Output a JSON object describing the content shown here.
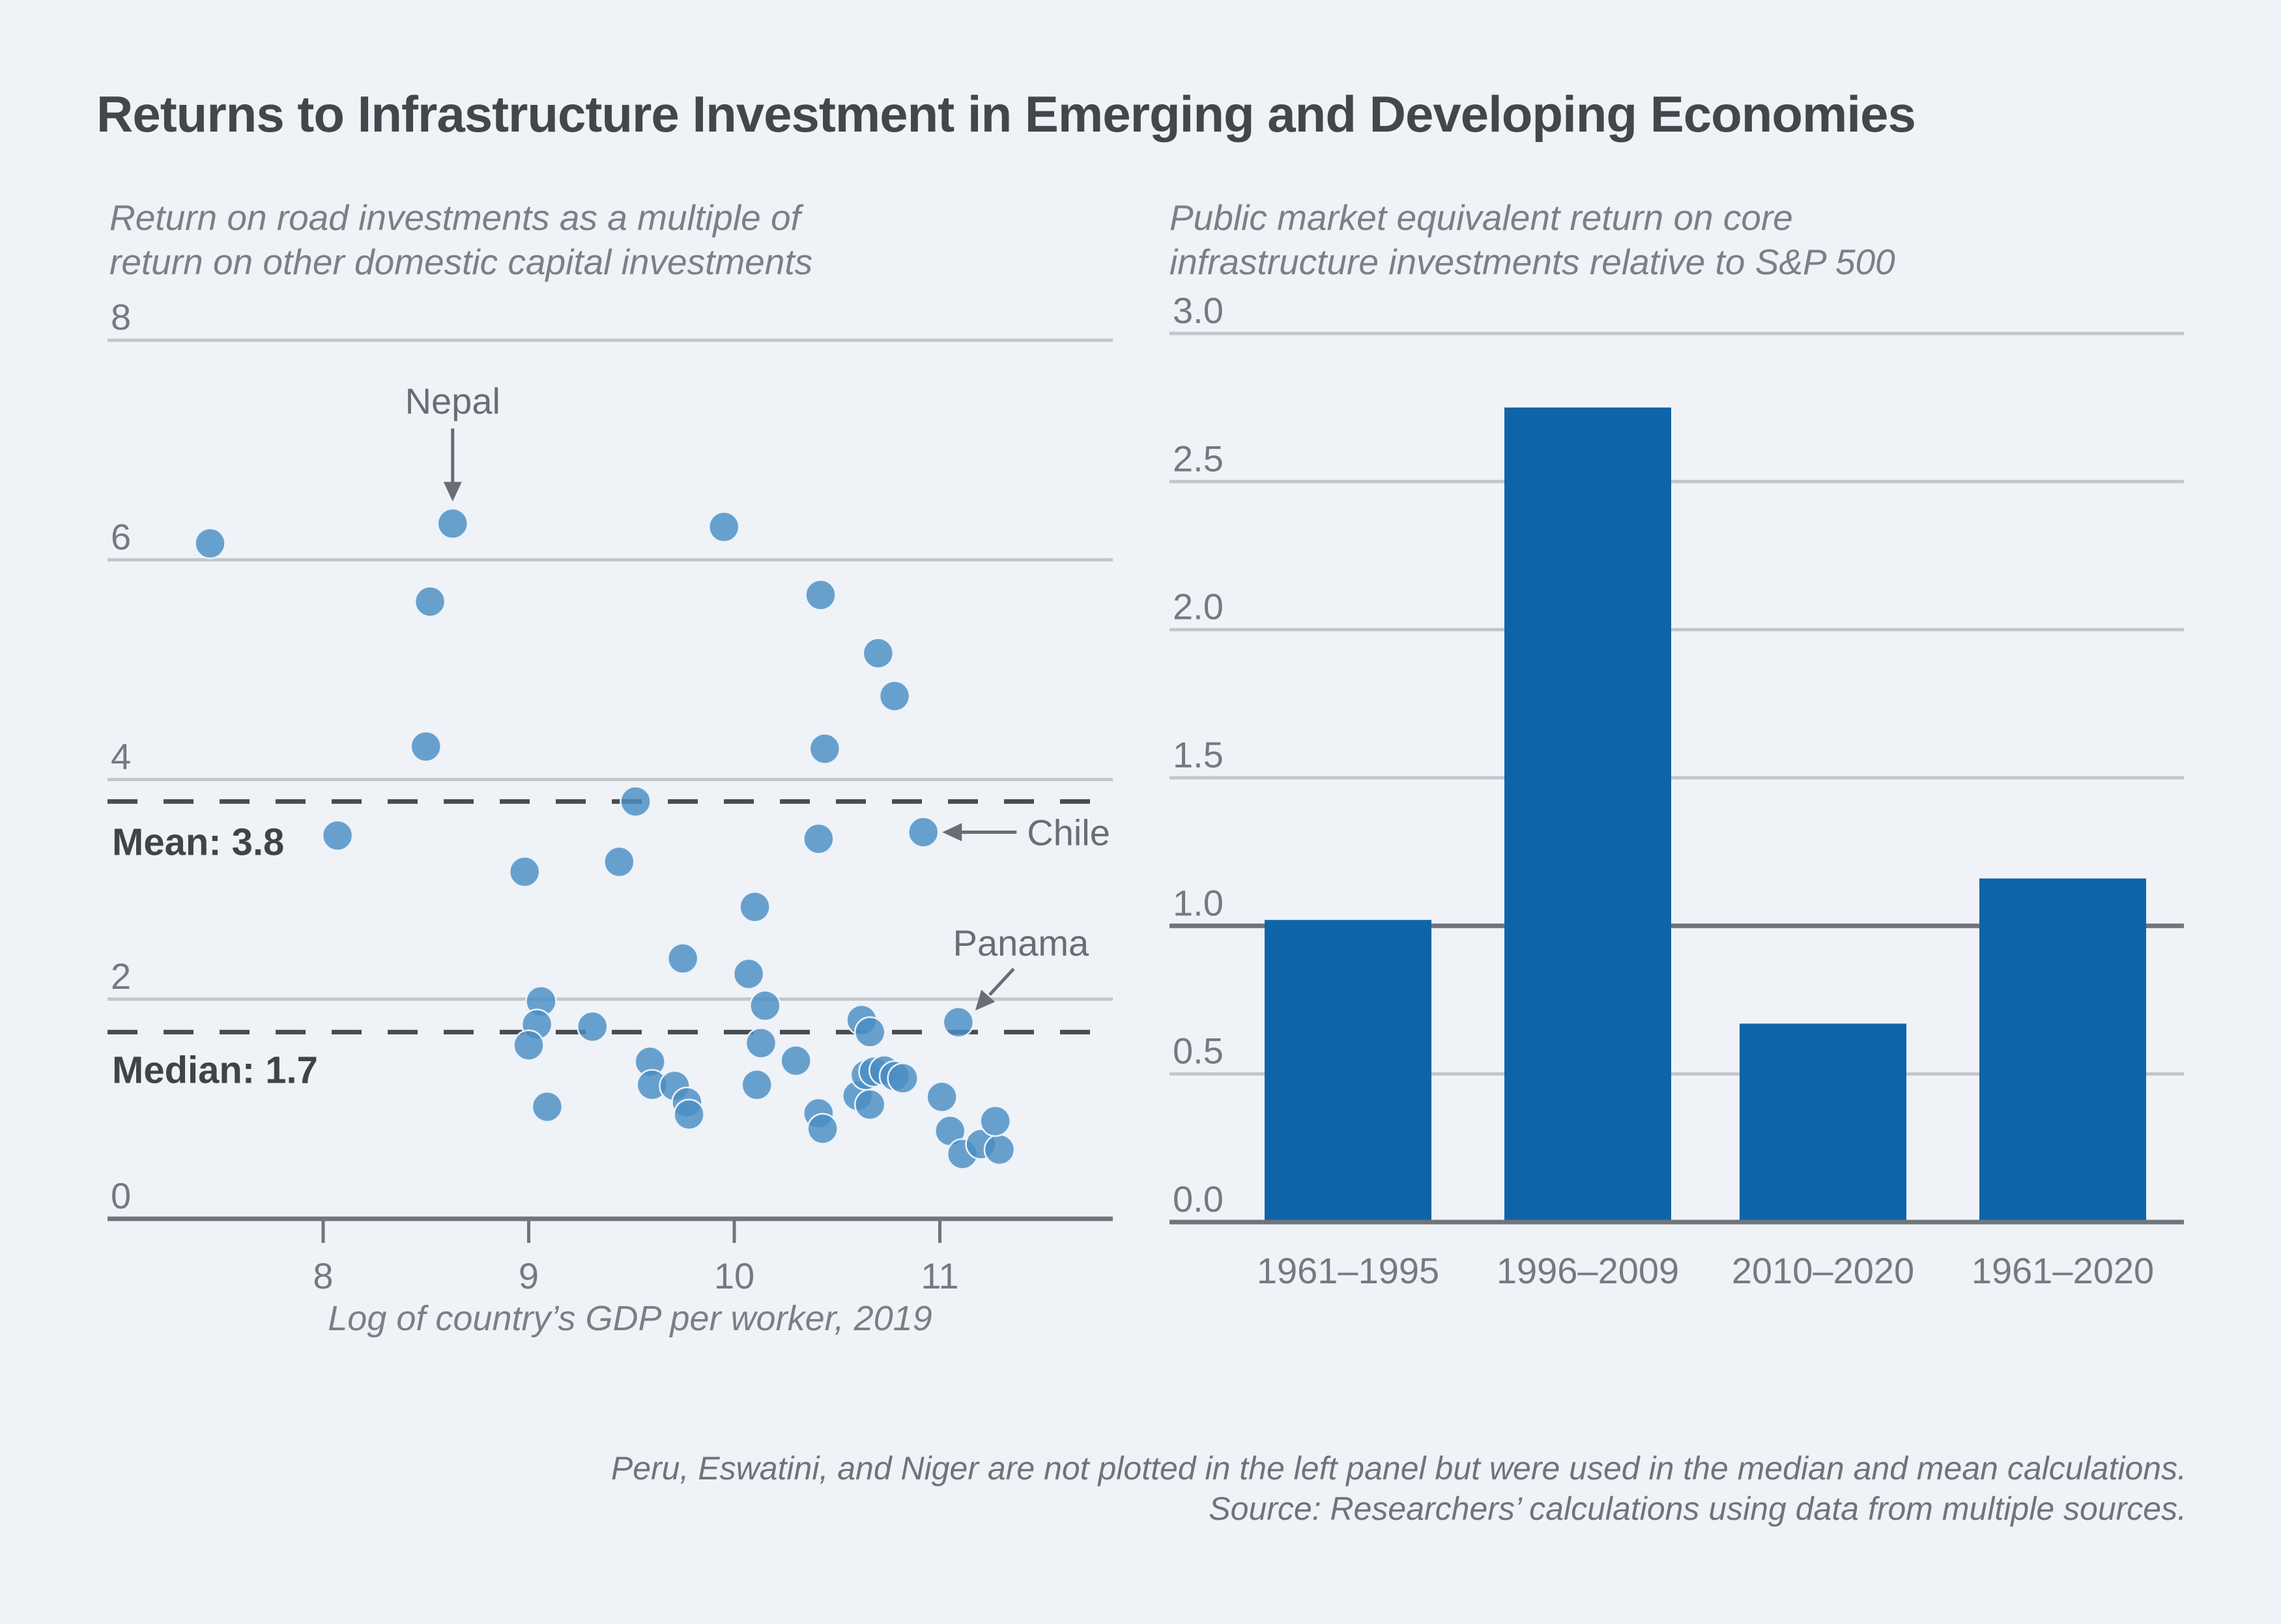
{
  "title": "Returns to Infrastructure Investment in Emerging and Developing Economies",
  "footnote": {
    "line1": "Peru, Eswatini, and Niger are not plotted in the left panel but were used in the median and mean calculations.",
    "line2": "Source: Researchers’ calculations using data from multiple sources."
  },
  "colors": {
    "background": "#eff3f8",
    "title_text": "#43474c",
    "muted_text": "#7b8086",
    "gridline_light": "#c1c6cb",
    "gridline_dark": "#6f757a",
    "dashed_line": "#484d52",
    "scatter_point": "#4a8dc3",
    "bar_fill": "#0f64a7",
    "annotation": "#696e74"
  },
  "chart_data": [
    {
      "type": "scatter",
      "panel": "left",
      "subtitle_lines": [
        "Return on road investments as a multiple of",
        "return on other domestic capital investments"
      ],
      "xlabel": "Log of country’s GDP per worker, 2019",
      "xlim": [
        6.95,
        11.85
      ],
      "ylim": [
        0,
        8
      ],
      "x_ticks": [
        8,
        9,
        10,
        11
      ],
      "y_ticks": [
        0,
        2,
        4,
        6,
        8
      ],
      "grid": true,
      "mean_line": {
        "label": "Mean: 3.8",
        "value": 3.8
      },
      "median_line": {
        "label": "Median: 1.7",
        "value": 1.7
      },
      "points": [
        [
          7.45,
          6.15
        ],
        [
          8.63,
          6.33
        ],
        [
          9.95,
          6.3
        ],
        [
          8.52,
          5.62
        ],
        [
          10.42,
          5.68
        ],
        [
          10.7,
          5.15
        ],
        [
          10.78,
          4.76
        ],
        [
          8.5,
          4.3
        ],
        [
          10.44,
          4.28
        ],
        [
          9.52,
          3.8
        ],
        [
          8.07,
          3.49
        ],
        [
          10.41,
          3.46
        ],
        [
          10.92,
          3.52
        ],
        [
          8.98,
          3.16
        ],
        [
          9.44,
          3.25
        ],
        [
          10.1,
          2.84
        ],
        [
          9.75,
          2.37
        ],
        [
          10.07,
          2.23
        ],
        [
          10.15,
          1.94
        ],
        [
          11.09,
          1.79
        ],
        [
          10.62,
          1.81
        ],
        [
          10.66,
          1.7
        ],
        [
          9.31,
          1.75
        ],
        [
          9.06,
          1.98
        ],
        [
          9.04,
          1.77
        ],
        [
          9.0,
          1.58
        ],
        [
          10.13,
          1.6
        ],
        [
          9.59,
          1.43
        ],
        [
          9.6,
          1.22
        ],
        [
          9.71,
          1.21
        ],
        [
          9.77,
          1.06
        ],
        [
          9.78,
          0.95
        ],
        [
          9.09,
          1.02
        ],
        [
          10.3,
          1.44
        ],
        [
          10.11,
          1.22
        ],
        [
          10.41,
          0.96
        ],
        [
          10.43,
          0.82
        ],
        [
          10.6,
          1.12
        ],
        [
          10.64,
          1.31
        ],
        [
          10.68,
          1.34
        ],
        [
          10.73,
          1.35
        ],
        [
          10.78,
          1.3
        ],
        [
          10.82,
          1.28
        ],
        [
          10.66,
          1.04
        ],
        [
          11.01,
          1.11
        ],
        [
          11.05,
          0.8
        ],
        [
          11.11,
          0.59
        ],
        [
          11.2,
          0.68
        ],
        [
          11.29,
          0.63
        ],
        [
          11.27,
          0.89
        ]
      ],
      "annotations": [
        {
          "label": "Nepal",
          "x": 8.63,
          "y": 6.33,
          "placement": "above"
        },
        {
          "label": "Chile",
          "x": 10.92,
          "y": 3.52,
          "placement": "right"
        },
        {
          "label": "Panama",
          "x": 11.09,
          "y": 1.79,
          "placement": "upper-right"
        }
      ]
    },
    {
      "type": "bar",
      "panel": "right",
      "subtitle_lines": [
        "Public market equivalent return on core",
        "infrastructure investments relative to S&P 500"
      ],
      "categories": [
        "1961–1995",
        "1996–2009",
        "2010–2020",
        "1961–2020"
      ],
      "values": [
        1.02,
        2.75,
        0.67,
        1.16
      ],
      "ylim": [
        0,
        3.0
      ],
      "y_ticks": [
        0.0,
        0.5,
        1.0,
        1.5,
        2.0,
        2.5,
        3.0
      ],
      "grid": true,
      "benchmark_line": 1.0
    }
  ]
}
